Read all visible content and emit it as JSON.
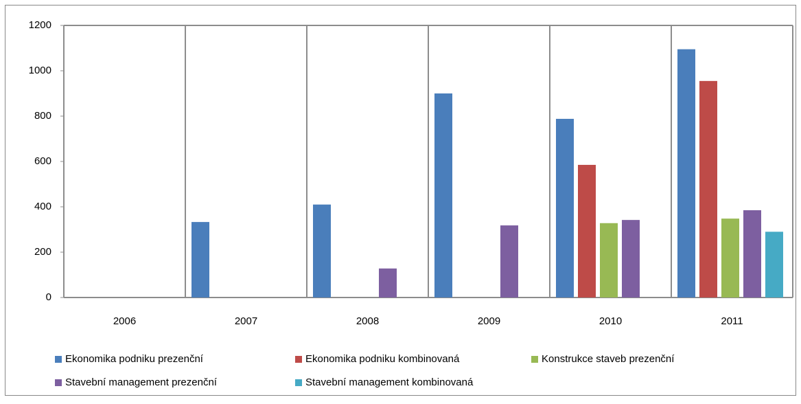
{
  "chart_data": {
    "type": "bar",
    "categories": [
      "2006",
      "2007",
      "2008",
      "2009",
      "2010",
      "2011"
    ],
    "series": [
      {
        "name": "Ekonomika podniku prezenční",
        "color": "#4a7ebb",
        "values": [
          null,
          333,
          410,
          900,
          788,
          1095
        ]
      },
      {
        "name": "Ekonomika podniku kombinovaná",
        "color": "#be4b48",
        "values": [
          null,
          null,
          null,
          null,
          585,
          955
        ]
      },
      {
        "name": "Konstrukce staveb prezenční",
        "color": "#98b954",
        "values": [
          null,
          null,
          null,
          null,
          328,
          348
        ]
      },
      {
        "name": "Stavební management  prezenční",
        "color": "#7d5fa0",
        "values": [
          null,
          null,
          128,
          318,
          342,
          385
        ]
      },
      {
        "name": "Stavební management  kombinovaná",
        "color": "#46aac5",
        "values": [
          null,
          null,
          null,
          null,
          null,
          290
        ]
      }
    ],
    "ylim": [
      0,
      1200
    ],
    "yticks": [
      0,
      200,
      400,
      600,
      800,
      1000,
      1200
    ],
    "legend": "bottom"
  }
}
